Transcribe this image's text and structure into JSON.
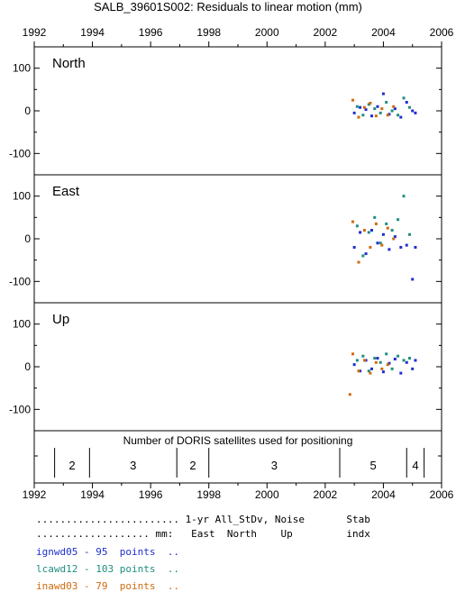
{
  "chart_data": {
    "type": "scatter",
    "title": "SALB_39601S002: Residuals to linear motion (mm)",
    "xlim": [
      1992,
      2006
    ],
    "x_ticks": [
      "1992",
      "1994",
      "1996",
      "1998",
      "2000",
      "2002",
      "2004",
      "2006"
    ],
    "panels": [
      {
        "name": "North",
        "ylim": [
          -150,
          150
        ],
        "y_ticks": [
          "100",
          "0",
          "-100"
        ],
        "y_tick_values": [
          100,
          0,
          -100
        ],
        "series": [
          {
            "name": "ignwd05",
            "color": "#1f2ecf",
            "x": [
              2003.0,
              2003.2,
              2003.4,
              2003.6,
              2003.8,
              2004.0,
              2004.2,
              2004.4,
              2004.6,
              2004.8,
              2005.0,
              2005.1
            ],
            "y": [
              -5,
              8,
              3,
              -12,
              10,
              40,
              -8,
              5,
              -15,
              20,
              0,
              -5
            ]
          },
          {
            "name": "lcawd12",
            "color": "#1f8f7f",
            "x": [
              2003.1,
              2003.3,
              2003.5,
              2003.7,
              2003.9,
              2004.1,
              2004.3,
              2004.5,
              2004.7,
              2004.9
            ],
            "y": [
              10,
              -10,
              15,
              5,
              -5,
              20,
              0,
              -10,
              30,
              8
            ]
          },
          {
            "name": "inawd03",
            "color": "#d06a10",
            "x": [
              2002.95,
              2003.15,
              2003.35,
              2003.55,
              2003.75,
              2003.95,
              2004.15,
              2004.35
            ],
            "y": [
              25,
              -15,
              8,
              18,
              -12,
              5,
              -10,
              10
            ]
          }
        ]
      },
      {
        "name": "East",
        "ylim": [
          -150,
          150
        ],
        "y_ticks": [
          "100",
          "0",
          "-100"
        ],
        "y_tick_values": [
          100,
          0,
          -100
        ],
        "series": [
          {
            "name": "ignwd05",
            "color": "#1f2ecf",
            "x": [
              2003.0,
              2003.2,
              2003.4,
              2003.6,
              2003.8,
              2004.0,
              2004.2,
              2004.4,
              2004.6,
              2004.8,
              2005.0,
              2005.1
            ],
            "y": [
              -20,
              15,
              -35,
              20,
              -10,
              10,
              -25,
              5,
              -20,
              -15,
              -95,
              -20
            ]
          },
          {
            "name": "lcawd12",
            "color": "#1f8f7f",
            "x": [
              2003.1,
              2003.3,
              2003.5,
              2003.7,
              2003.9,
              2004.1,
              2004.3,
              2004.5,
              2004.7,
              2004.9
            ],
            "y": [
              30,
              -40,
              15,
              50,
              -10,
              35,
              20,
              45,
              100,
              10
            ]
          },
          {
            "name": "inawd03",
            "color": "#d06a10",
            "x": [
              2002.95,
              2003.15,
              2003.35,
              2003.55,
              2003.75,
              2003.95,
              2004.15,
              2004.35
            ],
            "y": [
              40,
              -55,
              20,
              -20,
              35,
              -15,
              25,
              0
            ]
          }
        ]
      },
      {
        "name": "Up",
        "ylim": [
          -150,
          150
        ],
        "y_ticks": [
          "100",
          "0",
          "-100"
        ],
        "y_tick_values": [
          100,
          0,
          -100
        ],
        "series": [
          {
            "name": "ignwd05",
            "color": "#1f2ecf",
            "x": [
              2003.0,
              2003.2,
              2003.4,
              2003.6,
              2003.8,
              2004.0,
              2004.2,
              2004.4,
              2004.6,
              2004.8,
              2005.0,
              2005.1
            ],
            "y": [
              5,
              -10,
              15,
              -5,
              20,
              -12,
              8,
              18,
              -15,
              10,
              -5,
              15
            ]
          },
          {
            "name": "lcawd12",
            "color": "#1f8f7f",
            "x": [
              2003.1,
              2003.3,
              2003.5,
              2003.7,
              2003.9,
              2004.1,
              2004.3,
              2004.5,
              2004.7,
              2004.9
            ],
            "y": [
              15,
              25,
              -10,
              20,
              10,
              30,
              -5,
              25,
              15,
              20
            ]
          },
          {
            "name": "inawd03",
            "color": "#d06a10",
            "x": [
              2002.85,
              2002.95,
              2003.15,
              2003.35,
              2003.55,
              2003.75,
              2003.95,
              2004.15
            ],
            "y": [
              -65,
              30,
              -10,
              15,
              -15,
              10,
              -5,
              5
            ]
          }
        ]
      }
    ],
    "satellites": {
      "title": "Number of DORIS satellites used for positioning",
      "segments": [
        {
          "start": 1992.7,
          "end": 1993.9,
          "count": "2"
        },
        {
          "start": 1993.9,
          "end": 1996.9,
          "count": "3"
        },
        {
          "start": 1996.9,
          "end": 1998.0,
          "count": "2"
        },
        {
          "start": 1998.0,
          "end": 2002.5,
          "count": "3"
        },
        {
          "start": 2002.5,
          "end": 2004.8,
          "count": "5"
        },
        {
          "start": 2004.8,
          "end": 2005.4,
          "count": "4"
        }
      ]
    }
  },
  "legend": {
    "header1": "........................ 1-yr All_StDv, Noise       Stab",
    "header2": "................... mm:   East  North    Up         indx",
    "rows": [
      {
        "text": "ignwd05 - 95  points  ..",
        "color": "#1f2ecf"
      },
      {
        "text": "lcawd12 - 103 points  ..",
        "color": "#1f8f7f"
      },
      {
        "text": "inawd03 - 79  points  ..",
        "color": "#d06a10"
      }
    ]
  }
}
